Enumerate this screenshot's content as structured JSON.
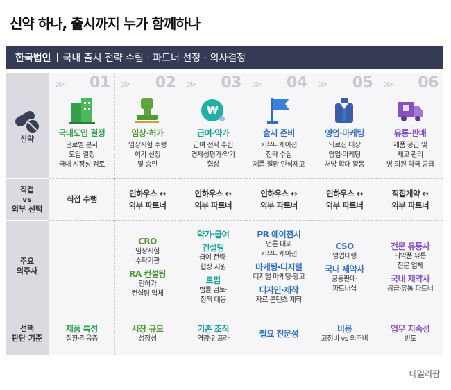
{
  "title": "신약 하나, 출시까지 누가 함께하나",
  "header": {
    "label": "한국법인",
    "text": "국내 출시 전략 수립 · 파트너 선정 · 의사결정"
  },
  "row_labels": [
    [
      "신약"
    ],
    [
      "직접",
      "vs",
      "외부 선택"
    ],
    [
      "주요",
      "외주사"
    ],
    [
      "선택",
      "판단 기준"
    ]
  ],
  "stages": [
    {
      "number": "01",
      "title": "국내도입 결정",
      "color": "#35a04a",
      "desc": [
        "글로벌 본사",
        "도입 결정",
        "국내 시장성 검토"
      ],
      "choice": [
        "직접 수행"
      ],
      "partners": [],
      "criteria": {
        "title": "제품 특성",
        "desc": "질환·적응증"
      }
    },
    {
      "number": "02",
      "title": "임상·허가",
      "color": "#4f9a35",
      "desc": [
        "임상시험 수행",
        "허가 신청",
        "및 승인"
      ],
      "choice": [
        "인하우스 ↔",
        "외부 파트너"
      ],
      "partners": [
        {
          "name": [
            "CRO"
          ],
          "desc": [
            "임상시험",
            "수탁기관"
          ]
        },
        {
          "name": [
            "RA 컨설팅"
          ],
          "desc": [
            "인허가",
            "컨설팅 업체"
          ]
        }
      ],
      "criteria": {
        "title": "시장 규모",
        "desc": "성장성"
      }
    },
    {
      "number": "03",
      "title": "급여·약가",
      "color": "#1b9e9a",
      "desc": [
        "급여 전략 수립",
        "경제성평가·약가",
        "협상"
      ],
      "choice": [
        "인하우스 ↔",
        "외부 파트너"
      ],
      "partners": [
        {
          "name": [
            "약가·급여",
            "컨설팅"
          ],
          "desc": [
            "급여 전략·",
            "협상 지원"
          ]
        },
        {
          "name": [
            "로펌"
          ],
          "desc": [
            "법률 검토·",
            "정책 대응"
          ]
        }
      ],
      "criteria": {
        "title": "기존 조직",
        "desc": "역량·인프라"
      }
    },
    {
      "number": "04",
      "title": "출시 준비",
      "color": "#2e6dbf",
      "desc": [
        "커뮤니케이션",
        "전략 수립",
        "제품·질환 인식제고"
      ],
      "choice": [
        "인하우스 ↔",
        "외부 파트너"
      ],
      "partners": [
        {
          "name": [
            "PR 에이전시"
          ],
          "desc": [
            "언론·대외",
            "커뮤니케이션"
          ]
        },
        {
          "name": [
            "마케팅·디지털"
          ],
          "desc": [
            "디지털 마케팅·광고"
          ]
        },
        {
          "name": [
            "디자인·제작"
          ],
          "desc": [
            "자료·콘텐츠 제작"
          ]
        }
      ],
      "criteria": {
        "title": "필요 전문성"
      }
    },
    {
      "number": "05",
      "title": "영업·마케팅",
      "color": "#3a74c4",
      "desc": [
        "의료진 대상",
        "영업·마케팅",
        "처방 확대 활동"
      ],
      "choice": [
        "인하우스 ↔",
        "외부 파트너"
      ],
      "partners": [
        {
          "name": [
            "CSO"
          ],
          "desc": [
            "영업대행"
          ]
        },
        {
          "name": [
            "국내 제약사"
          ],
          "desc": [
            "공동판매·",
            "파트너십"
          ]
        }
      ],
      "criteria": {
        "title": "비용",
        "desc": "고정비 vs 외주비"
      }
    },
    {
      "number": "06",
      "title": "유통·판매",
      "color": "#8652c0",
      "desc": [
        "제품 공급 및",
        "재고 관리",
        "병·의원·약국 공급"
      ],
      "choice": [
        "직접계약 ↔",
        "외부 파트너"
      ],
      "partners": [
        {
          "name": [
            "전문 유통사"
          ],
          "desc": [
            "의약품 유통",
            "전문 업체"
          ]
        },
        {
          "name": [
            "국내 제약사"
          ],
          "desc": [
            "공급·유통 파트너"
          ]
        }
      ],
      "criteria": {
        "title": "업무 지속성",
        "desc": "빈도"
      }
    }
  ],
  "footer": "데일리팜"
}
